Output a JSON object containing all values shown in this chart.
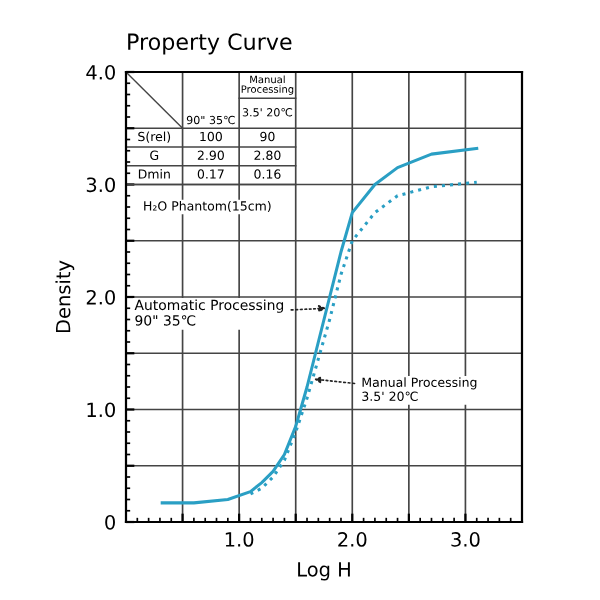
{
  "chart_data": {
    "type": "line",
    "title": "Property Curve",
    "xlabel": "Log H",
    "ylabel": "Density",
    "xlim": [
      0,
      3.5
    ],
    "ylim": [
      0,
      4.0
    ],
    "xticks": [
      {
        "value": 0.5,
        "label": null
      },
      {
        "value": 1.0,
        "label": "1.0"
      },
      {
        "value": 1.5,
        "label": null
      },
      {
        "value": 2.0,
        "label": "2.0"
      },
      {
        "value": 2.5,
        "label": null
      },
      {
        "value": 3.0,
        "label": "3.0"
      }
    ],
    "yticks": [
      0,
      {
        "value": 0.5,
        "label": null
      },
      {
        "value": 1.0,
        "label": "1.0"
      },
      {
        "value": 1.5,
        "label": null
      },
      {
        "value": 2.0,
        "label": "2.0"
      },
      {
        "value": 2.5,
        "label": null
      },
      {
        "value": 3.0,
        "label": "3.0"
      },
      {
        "value": 3.5,
        "label": null
      },
      {
        "value": 4.0,
        "label": "4.0"
      }
    ],
    "grid": true,
    "marker": "none",
    "series": [
      {
        "color": "#2a9fc4",
        "line_style": "solid",
        "x": [
          0.32,
          0.6,
          0.9,
          1.1,
          1.2,
          1.3,
          1.4,
          1.5,
          1.6,
          1.7,
          1.8,
          1.9,
          2.0,
          2.2,
          2.4,
          2.7,
          3.1
        ],
        "values": [
          0.17,
          0.17,
          0.2,
          0.27,
          0.35,
          0.45,
          0.6,
          0.85,
          1.2,
          1.6,
          2.0,
          2.4,
          2.75,
          3.0,
          3.15,
          3.27,
          3.32
        ]
      },
      {
        "color": "#2a9fc4",
        "line_style": "dotted",
        "x": [
          1.1,
          1.2,
          1.3,
          1.4,
          1.5,
          1.6,
          1.7,
          1.8,
          1.9,
          2.0,
          2.2,
          2.4,
          2.7,
          3.1
        ],
        "values": [
          0.25,
          0.3,
          0.4,
          0.55,
          0.8,
          1.1,
          1.45,
          1.8,
          2.2,
          2.5,
          2.75,
          2.9,
          2.98,
          3.02
        ]
      }
    ],
    "annotations": [
      "Manual\nProcessing",
      "90\" 35℃",
      "3.5' 20℃",
      "S(rel)",
      "100",
      "90",
      "G",
      "2.90",
      "2.80",
      "Dmin",
      "0.17",
      "0.16",
      "H₂O Phantom(15cm)",
      {
        "text": "Automatic Processing\n90\" 35℃",
        "x": 1.77,
        "y": 1.9
      },
      {
        "text": "Manual Processing\n3.5' 20℃",
        "x": 1.66,
        "y": 1.27
      }
    ]
  }
}
